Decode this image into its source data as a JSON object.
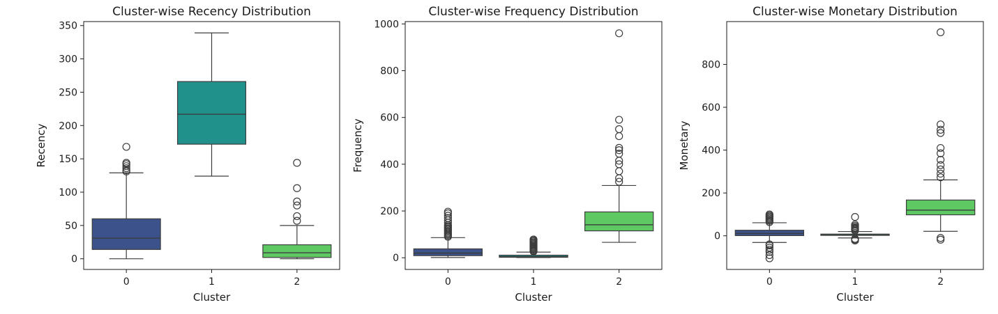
{
  "chart_data": [
    {
      "type": "box",
      "title": "Cluster-wise Recency Distribution",
      "xlabel": "Cluster",
      "ylabel": "Recency",
      "categories": [
        "0",
        "1",
        "2"
      ],
      "ylim": [
        -16,
        356
      ],
      "yticks": [
        0,
        50,
        100,
        150,
        200,
        250,
        300,
        350
      ],
      "colors": [
        "#3b528b",
        "#21918c",
        "#5ec962"
      ],
      "boxes": [
        {
          "category": "0",
          "whislo": 0,
          "q1": 14,
          "med": 31,
          "q3": 60,
          "whishi": 129,
          "fliers": [
            131,
            133,
            136,
            139,
            142,
            144,
            168
          ]
        },
        {
          "category": "1",
          "whislo": 124,
          "q1": 172,
          "med": 217,
          "q3": 266,
          "whishi": 339,
          "fliers": []
        },
        {
          "category": "2",
          "whislo": 0,
          "q1": 2,
          "med": 9,
          "q3": 21,
          "whishi": 50,
          "fliers": [
            57,
            64,
            80,
            86,
            106,
            144
          ]
        }
      ]
    },
    {
      "type": "box",
      "title": "Cluster-wise Frequency Distribution",
      "xlabel": "Cluster",
      "ylabel": "Frequency",
      "categories": [
        "0",
        "1",
        "2"
      ],
      "ylim": [
        -50,
        1010
      ],
      "yticks": [
        0,
        200,
        400,
        600,
        800,
        1000
      ],
      "colors": [
        "#3b528b",
        "#21918c",
        "#5ec962"
      ],
      "boxes": [
        {
          "category": "0",
          "whislo": 1,
          "q1": 9,
          "med": 20,
          "q3": 38,
          "whishi": 86,
          "fliers": [
            90,
            95,
            100,
            105,
            110,
            115,
            120,
            125,
            130,
            135,
            140,
            150,
            160,
            170,
            180,
            190,
            197
          ]
        },
        {
          "category": "1",
          "whislo": 1,
          "q1": 2,
          "med": 5,
          "q3": 11,
          "whishi": 24,
          "fliers": [
            27,
            30,
            34,
            38,
            42,
            46,
            50,
            54,
            58,
            62,
            66,
            70,
            74,
            78
          ]
        },
        {
          "category": "2",
          "whislo": 66,
          "q1": 115,
          "med": 141,
          "q3": 196,
          "whishi": 309,
          "fliers": [
            325,
            340,
            370,
            400,
            415,
            445,
            460,
            470,
            520,
            550,
            590,
            960
          ]
        }
      ]
    },
    {
      "type": "box",
      "title": "Cluster-wise Monetary Distribution",
      "xlabel": "Cluster",
      "ylabel": "Monetary",
      "categories": [
        "0",
        "1",
        "2"
      ],
      "ylim": [
        -157,
        1000
      ],
      "yticks": [
        0,
        200,
        400,
        600,
        800
      ],
      "colors": [
        "#3b528b",
        "#21918c",
        "#5ec962"
      ],
      "boxes": [
        {
          "category": "0",
          "whislo": -31,
          "q1": 1,
          "med": 11,
          "q3": 26,
          "whishi": 61,
          "fliers": [
            64,
            70,
            75,
            80,
            85,
            90,
            95,
            100,
            -40,
            -45,
            -55,
            -65,
            -75,
            -90,
            -105
          ]
        },
        {
          "category": "1",
          "whislo": -10,
          "q1": 2,
          "med": 4,
          "q3": 8,
          "whishi": 20,
          "fliers": [
            24,
            28,
            32,
            36,
            40,
            46,
            52,
            88,
            -14,
            -18,
            -22
          ]
        },
        {
          "category": "2",
          "whislo": 21,
          "q1": 98,
          "med": 120,
          "q3": 167,
          "whishi": 261,
          "fliers": [
            273,
            290,
            310,
            330,
            355,
            385,
            410,
            480,
            495,
            520,
            950,
            -10,
            -18
          ]
        }
      ]
    }
  ]
}
